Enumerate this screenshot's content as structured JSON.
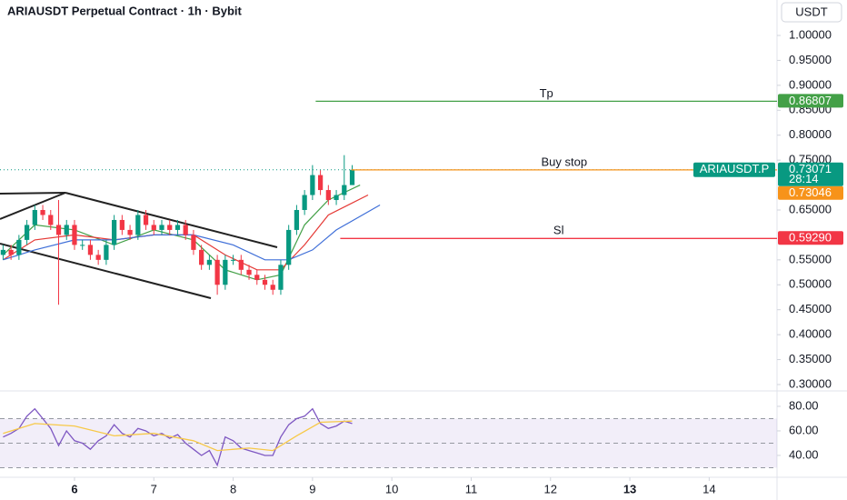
{
  "chart_data": {
    "type": "candlestick",
    "title": "ARIAUSDT Perpetual Contract · 1h · Bybit",
    "currency": "USDT",
    "up_color": "#089981",
    "down_color": "#f23645",
    "x": [
      5.1,
      5.2,
      5.3,
      5.4,
      5.5,
      5.6,
      5.7,
      5.8,
      5.9,
      6.0,
      6.1,
      6.2,
      6.3,
      6.4,
      6.5,
      6.6,
      6.7,
      6.8,
      6.9,
      7.0,
      7.1,
      7.2,
      7.3,
      7.4,
      7.5,
      7.6,
      7.7,
      7.8,
      7.9,
      8.0,
      8.1,
      8.2,
      8.3,
      8.4,
      8.5,
      8.6,
      8.7,
      8.8,
      8.9,
      9.0,
      9.1,
      9.2,
      9.3,
      9.4,
      9.5
    ],
    "open": [
      0.56,
      0.57,
      0.56,
      0.59,
      0.62,
      0.65,
      0.64,
      0.62,
      0.6,
      0.62,
      0.58,
      0.58,
      0.56,
      0.55,
      0.58,
      0.63,
      0.61,
      0.6,
      0.64,
      0.62,
      0.61,
      0.62,
      0.61,
      0.62,
      0.6,
      0.57,
      0.54,
      0.55,
      0.5,
      0.55,
      0.55,
      0.53,
      0.52,
      0.51,
      0.5,
      0.49,
      0.54,
      0.61,
      0.65,
      0.68,
      0.72,
      0.69,
      0.67,
      0.68,
      0.7
    ],
    "high": [
      0.58,
      0.58,
      0.6,
      0.63,
      0.66,
      0.66,
      0.65,
      0.67,
      0.63,
      0.63,
      0.59,
      0.59,
      0.57,
      0.59,
      0.64,
      0.64,
      0.62,
      0.65,
      0.65,
      0.63,
      0.63,
      0.63,
      0.63,
      0.63,
      0.61,
      0.58,
      0.56,
      0.56,
      0.56,
      0.56,
      0.56,
      0.54,
      0.53,
      0.52,
      0.51,
      0.55,
      0.62,
      0.66,
      0.69,
      0.74,
      0.73,
      0.7,
      0.69,
      0.76,
      0.74
    ],
    "low": [
      0.55,
      0.55,
      0.55,
      0.58,
      0.61,
      0.63,
      0.61,
      0.46,
      0.59,
      0.57,
      0.57,
      0.55,
      0.54,
      0.54,
      0.57,
      0.6,
      0.59,
      0.59,
      0.61,
      0.6,
      0.6,
      0.6,
      0.6,
      0.59,
      0.56,
      0.53,
      0.53,
      0.48,
      0.49,
      0.54,
      0.52,
      0.51,
      0.5,
      0.49,
      0.48,
      0.48,
      0.53,
      0.6,
      0.64,
      0.67,
      0.68,
      0.66,
      0.66,
      0.67,
      0.7
    ],
    "close": [
      0.57,
      0.56,
      0.59,
      0.62,
      0.65,
      0.64,
      0.62,
      0.6,
      0.62,
      0.58,
      0.58,
      0.56,
      0.55,
      0.58,
      0.63,
      0.61,
      0.6,
      0.64,
      0.62,
      0.61,
      0.62,
      0.61,
      0.62,
      0.6,
      0.57,
      0.54,
      0.55,
      0.5,
      0.55,
      0.55,
      0.53,
      0.52,
      0.51,
      0.5,
      0.49,
      0.54,
      0.61,
      0.65,
      0.68,
      0.72,
      0.69,
      0.67,
      0.68,
      0.7,
      0.73071
    ],
    "xlim": [
      5.061,
      14.855
    ],
    "xticks": [
      6,
      7,
      8,
      9,
      10,
      11,
      12,
      13,
      14
    ],
    "xticks_bold": [
      6,
      13
    ],
    "ylim": [
      0.2872,
      1.0711
    ],
    "yticks": [
      {
        "value": 0.3,
        "label": "0.30000"
      },
      {
        "value": 0.35,
        "label": "0.35000"
      },
      {
        "value": 0.4,
        "label": "0.40000"
      },
      {
        "value": 0.45,
        "label": "0.45000"
      },
      {
        "value": 0.5,
        "label": "0.50000"
      },
      {
        "value": 0.55,
        "label": "0.55000"
      },
      {
        "value": 0.65,
        "label": "0.65000"
      },
      {
        "value": 0.75,
        "label": "0.75000"
      },
      {
        "value": 0.8,
        "label": "0.80000"
      },
      {
        "value": 0.85,
        "label": "0.85000"
      },
      {
        "value": 0.9,
        "label": "0.90000"
      },
      {
        "value": 0.95,
        "label": "0.95000"
      },
      {
        "value": 1.0,
        "label": "1.00000"
      }
    ],
    "lines": [
      {
        "color": "#43a047",
        "x": [
          5.1,
          5.5,
          6.0,
          6.5,
          7.0,
          7.5,
          7.9,
          8.3,
          8.6,
          8.9,
          9.2,
          9.6
        ],
        "values": [
          0.56,
          0.62,
          0.61,
          0.58,
          0.61,
          0.59,
          0.53,
          0.51,
          0.52,
          0.62,
          0.67,
          0.7
        ]
      },
      {
        "color": "#e53935",
        "x": [
          5.1,
          5.5,
          6.0,
          6.5,
          7.0,
          7.5,
          7.9,
          8.3,
          8.6,
          8.9,
          9.2,
          9.7
        ],
        "values": [
          0.55,
          0.59,
          0.6,
          0.59,
          0.6,
          0.6,
          0.56,
          0.53,
          0.53,
          0.58,
          0.64,
          0.68
        ]
      },
      {
        "color": "#3f6fd8",
        "x": [
          5.1,
          5.5,
          6.0,
          6.5,
          7.0,
          7.5,
          8.0,
          8.4,
          8.7,
          9.0,
          9.3,
          9.85
        ],
        "values": [
          0.55,
          0.57,
          0.59,
          0.59,
          0.6,
          0.6,
          0.58,
          0.55,
          0.55,
          0.57,
          0.61,
          0.66
        ]
      }
    ],
    "levels": [
      {
        "name": "Tp",
        "value": 0.86807,
        "color": "#43a047",
        "from": 9.04
      },
      {
        "name": "Buy stop",
        "value": 0.73046,
        "color": "#f7931a",
        "from": 9.49
      },
      {
        "name": "Sl",
        "value": 0.5929,
        "value_label": "0.59290",
        "color": "#f23645",
        "from": 9.35
      }
    ],
    "last": {
      "symbol": "ARIAUSDT.P",
      "value": 0.73071,
      "countdown": "28:14",
      "color": "#089981"
    },
    "rsi": {
      "color": "#7e57c2",
      "values": [
        55,
        58,
        62,
        72,
        78,
        70,
        62,
        48,
        60,
        52,
        50,
        45,
        52,
        56,
        65,
        58,
        55,
        62,
        60,
        56,
        58,
        54,
        57,
        50,
        45,
        40,
        44,
        32,
        55,
        52,
        46,
        44,
        42,
        40,
        40,
        55,
        65,
        70,
        72,
        78,
        66,
        62,
        64,
        68,
        66
      ],
      "signal": {
        "color": "#f7c948",
        "x": [
          5.1,
          5.5,
          6.0,
          6.5,
          7.0,
          7.5,
          7.8,
          8.2,
          8.5,
          8.8,
          9.1,
          9.5
        ],
        "values": [
          58,
          66,
          64,
          56,
          58,
          52,
          44,
          46,
          44,
          56,
          67,
          68
        ]
      },
      "ylim": [
        24.4,
        91.1
      ],
      "yticks": [
        {
          "value": 40,
          "label": "40.00"
        },
        {
          "value": 60,
          "label": "60.00"
        },
        {
          "value": 80,
          "label": "80.00"
        }
      ],
      "bands": [
        70,
        50,
        30
      ]
    }
  }
}
